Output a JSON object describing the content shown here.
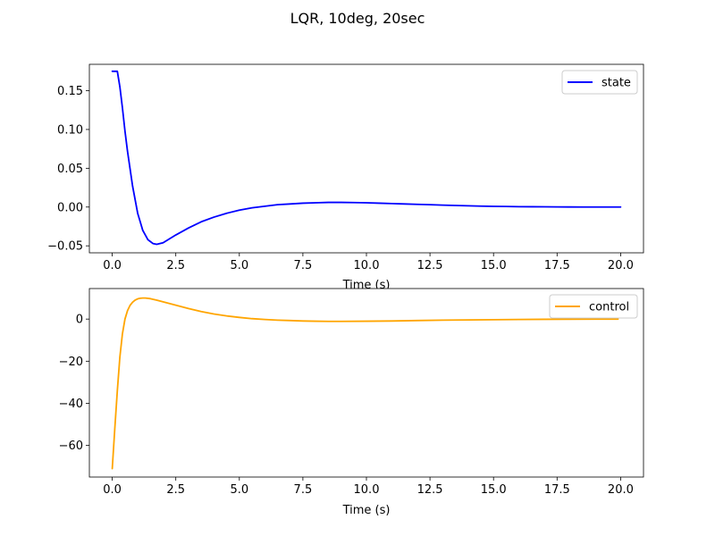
{
  "figure": {
    "title": "LQR, 10deg, 20sec"
  },
  "chart_data": [
    {
      "type": "line",
      "xlabel": "Time (s)",
      "ylabel": "",
      "xlim": [
        -0.9,
        20.9
      ],
      "ylim": [
        -0.059,
        0.184
      ],
      "xticks": [
        0.0,
        2.5,
        5.0,
        7.5,
        10.0,
        12.5,
        15.0,
        17.5,
        20.0
      ],
      "xtick_labels": [
        "0.0",
        "2.5",
        "5.0",
        "7.5",
        "10.0",
        "12.5",
        "15.0",
        "17.5",
        "20.0"
      ],
      "yticks": [
        -0.05,
        0.0,
        0.05,
        0.1,
        0.15
      ],
      "ytick_labels": [
        "−0.05",
        "0.00",
        "0.05",
        "0.10",
        "0.15"
      ],
      "grid": false,
      "legend": "upper right",
      "series": [
        {
          "name": "state",
          "color": "#0000ff",
          "x": [
            0.0,
            0.2,
            0.3,
            0.4,
            0.5,
            0.6,
            0.8,
            1.0,
            1.2,
            1.4,
            1.6,
            1.75,
            2.0,
            2.25,
            2.5,
            3.0,
            3.5,
            4.0,
            4.5,
            5.0,
            5.5,
            6.0,
            6.5,
            7.0,
            7.5,
            8.0,
            8.5,
            9.0,
            9.5,
            10.0,
            10.5,
            11.0,
            11.5,
            12.0,
            12.5,
            13.0,
            13.5,
            14.0,
            14.5,
            15.0,
            15.5,
            16.0,
            16.5,
            17.0,
            17.5,
            18.0,
            18.5,
            19.0,
            19.5,
            20.0
          ],
          "y": [
            0.175,
            0.175,
            0.155,
            0.128,
            0.098,
            0.072,
            0.027,
            -0.008,
            -0.03,
            -0.042,
            -0.047,
            -0.048,
            -0.046,
            -0.041,
            -0.036,
            -0.027,
            -0.019,
            -0.013,
            -0.008,
            -0.004,
            -0.001,
            0.001,
            0.003,
            0.004,
            0.005,
            0.0055,
            0.006,
            0.006,
            0.0058,
            0.0055,
            0.005,
            0.0045,
            0.004,
            0.0035,
            0.003,
            0.0025,
            0.002,
            0.0016,
            0.0012,
            0.0009,
            0.0007,
            0.0005,
            0.0004,
            0.0003,
            0.0002,
            0.0001,
            0.0,
            0.0,
            0.0,
            0.0
          ]
        }
      ]
    },
    {
      "type": "line",
      "xlabel": "Time (s)",
      "ylabel": "",
      "xlim": [
        -0.9,
        20.9
      ],
      "ylim": [
        -75.0,
        14.5
      ],
      "xticks": [
        0.0,
        2.5,
        5.0,
        7.5,
        10.0,
        12.5,
        15.0,
        17.5,
        20.0
      ],
      "xtick_labels": [
        "0.0",
        "2.5",
        "5.0",
        "7.5",
        "10.0",
        "12.5",
        "15.0",
        "17.5",
        "20.0"
      ],
      "yticks": [
        -60,
        -40,
        -20,
        0
      ],
      "ytick_labels": [
        "−60",
        "−40",
        "−20",
        "0"
      ],
      "grid": false,
      "legend": "upper right",
      "series": [
        {
          "name": "control",
          "color": "#ffa500",
          "x": [
            0.0,
            0.1,
            0.2,
            0.3,
            0.4,
            0.5,
            0.6,
            0.7,
            0.8,
            0.9,
            1.0,
            1.1,
            1.2,
            1.3,
            1.5,
            1.75,
            2.0,
            2.5,
            3.0,
            3.5,
            4.0,
            4.5,
            5.0,
            5.5,
            6.0,
            6.5,
            7.0,
            7.5,
            8.0,
            8.5,
            9.0,
            10.0,
            11.0,
            12.0,
            13.0,
            14.0,
            15.0,
            16.0,
            17.0,
            18.0,
            19.0,
            19.9
          ],
          "y": [
            -71.0,
            -52.0,
            -34.0,
            -18.0,
            -7.0,
            0.0,
            4.0,
            6.5,
            8.0,
            9.0,
            9.6,
            9.9,
            10.0,
            10.0,
            9.7,
            9.0,
            8.2,
            6.6,
            5.0,
            3.6,
            2.4,
            1.5,
            0.8,
            0.2,
            -0.2,
            -0.5,
            -0.7,
            -0.9,
            -1.0,
            -1.1,
            -1.1,
            -1.0,
            -0.9,
            -0.7,
            -0.5,
            -0.4,
            -0.3,
            -0.2,
            -0.1,
            -0.05,
            0.0,
            0.0
          ]
        }
      ]
    }
  ]
}
